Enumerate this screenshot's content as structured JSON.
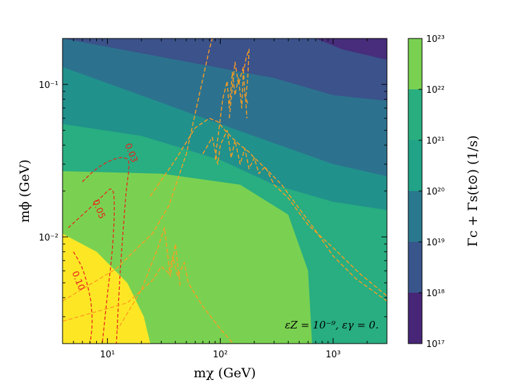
{
  "chart_data": {
    "type": "heatmap",
    "xscale": "log",
    "yscale": "log",
    "xlim": [
      4.0,
      3000
    ],
    "ylim": [
      0.002,
      0.2
    ],
    "xticks": [
      {
        "value": 10,
        "label": "10¹"
      },
      {
        "value": 100,
        "label": "10²"
      },
      {
        "value": 1000,
        "label": "10³"
      }
    ],
    "yticks": [
      {
        "value": 0.01,
        "label": "10⁻²"
      },
      {
        "value": 0.1,
        "label": "10⁻¹"
      }
    ],
    "xlabel": "mχ (GeV)",
    "ylabel": "mϕ (GeV)",
    "annotation": "εZ = 10⁻⁹, εγ = 0.",
    "colorbar": {
      "label": "Γc + Γs(t⊙) (1/s)",
      "levels": [
        17,
        18,
        19,
        20,
        21,
        22,
        23
      ],
      "tick_labels": [
        "10¹⁷",
        "10¹⁸",
        "10¹⁹",
        "10²⁰",
        "10²¹",
        "10²²",
        "10²³"
      ],
      "colors": [
        "#482677",
        "#39568c",
        "#2a788e",
        "#20a386",
        "#29af7f",
        "#7ad151",
        "#dde318"
      ]
    },
    "filled_regions": [
      {
        "level": "1e17-1e18",
        "color": "#472d7b",
        "boundary": [
          [
            700,
            0.2
          ],
          [
            1200,
            0.17
          ],
          [
            3000,
            0.145
          ]
        ]
      },
      {
        "level": "1e18-1e19",
        "color": "#3b528b",
        "boundary": [
          [
            4.0,
            0.2
          ],
          [
            300,
            0.11
          ],
          [
            1000,
            0.085
          ],
          [
            3000,
            0.078
          ]
        ]
      },
      {
        "level": "1e19-1e20",
        "color": "#2c728e",
        "boundary": [
          [
            4.0,
            0.13
          ],
          [
            100,
            0.055
          ],
          [
            1000,
            0.03
          ],
          [
            3000,
            0.025
          ]
        ]
      },
      {
        "level": "1e20-1e21",
        "color": "#21918c",
        "boundary": [
          [
            4.0,
            0.055
          ],
          [
            20,
            0.046
          ],
          [
            100,
            0.032
          ],
          [
            300,
            0.022
          ],
          [
            1000,
            0.017
          ],
          [
            3000,
            0.015
          ]
        ]
      },
      {
        "level": "1e21-1e22",
        "color": "#28ae80",
        "boundary": [
          [
            4.0,
            0.027
          ],
          [
            30,
            0.026
          ],
          [
            150,
            0.022
          ],
          [
            400,
            0.014
          ],
          [
            600,
            0.006
          ],
          [
            650,
            0.002
          ]
        ]
      },
      {
        "level": "1e22-1e23",
        "color": "#7ad151",
        "boundary": [
          [
            4.0,
            0.0105
          ],
          [
            8,
            0.008
          ],
          [
            15,
            0.005
          ],
          [
            21,
            0.003
          ],
          [
            24,
            0.002
          ]
        ]
      },
      {
        "level": ">1e23",
        "color": "#dde318",
        "boundary": []
      }
    ],
    "red_contours": [
      {
        "label": "0.03",
        "points": [
          [
            6.0,
            0.023
          ],
          [
            8.0,
            0.028
          ],
          [
            11,
            0.032
          ],
          [
            14,
            0.033
          ],
          [
            15.5,
            0.03
          ],
          [
            14.5,
            0.018
          ],
          [
            13,
            0.006
          ],
          [
            12,
            0.002
          ]
        ]
      },
      {
        "label": "0.05",
        "points": [
          [
            4.5,
            0.0115
          ],
          [
            7.0,
            0.0155
          ],
          [
            9.0,
            0.0185
          ],
          [
            11,
            0.0205
          ],
          [
            11.5,
            0.015
          ],
          [
            11,
            0.008
          ],
          [
            10,
            0.0042
          ],
          [
            9.0,
            0.002
          ]
        ]
      },
      {
        "label": "0.10",
        "points": [
          [
            5.0,
            0.008
          ],
          [
            6.0,
            0.0062
          ],
          [
            6.8,
            0.0045
          ],
          [
            7.2,
            0.0035
          ],
          [
            7.3,
            0.0026
          ],
          [
            7.0,
            0.002
          ]
        ]
      }
    ],
    "orange_curves": [
      {
        "points": [
          [
            4.0,
            0.0038
          ],
          [
            12,
            0.0062
          ],
          [
            20,
            0.009
          ],
          [
            25,
            0.0105
          ],
          [
            35,
            0.016
          ],
          [
            50,
            0.035
          ],
          [
            65,
            0.085
          ],
          [
            80,
            0.17
          ],
          [
            85,
            0.2
          ]
        ]
      },
      {
        "points": [
          [
            4.0,
            0.0028
          ],
          [
            15,
            0.0037
          ],
          [
            25,
            0.0052
          ],
          [
            30,
            0.0064
          ],
          [
            35,
            0.0058
          ],
          [
            38,
            0.0075
          ],
          [
            42,
            0.0055
          ],
          [
            48,
            0.0068
          ],
          [
            52,
            0.005
          ],
          [
            60,
            0.0042
          ],
          [
            70,
            0.0035
          ],
          [
            100,
            0.0025
          ],
          [
            130,
            0.002
          ]
        ]
      },
      {
        "points": [
          [
            12,
            0.0024
          ],
          [
            20,
            0.0045
          ],
          [
            28,
            0.0085
          ],
          [
            32,
            0.0115
          ],
          [
            36,
            0.0055
          ],
          [
            40,
            0.009
          ],
          [
            44,
            0.0048
          ]
        ]
      },
      {
        "points": [
          [
            24,
            0.0185
          ],
          [
            40,
            0.032
          ],
          [
            60,
            0.052
          ],
          [
            80,
            0.06
          ],
          [
            95,
            0.057
          ],
          [
            110,
            0.05
          ],
          [
            130,
            0.044
          ],
          [
            150,
            0.04
          ],
          [
            180,
            0.036
          ],
          [
            200,
            0.033
          ],
          [
            230,
            0.03
          ],
          [
            280,
            0.026
          ],
          [
            350,
            0.022
          ],
          [
            480,
            0.016
          ],
          [
            700,
            0.011
          ],
          [
            1000,
            0.0075
          ],
          [
            1600,
            0.0053
          ],
          [
            3000,
            0.0038
          ]
        ]
      },
      {
        "points": [
          [
            70,
            0.035
          ],
          [
            85,
            0.045
          ],
          [
            95,
            0.03
          ],
          [
            100,
            0.04
          ],
          [
            115,
            0.05
          ],
          [
            125,
            0.033
          ],
          [
            135,
            0.043
          ],
          [
            150,
            0.03
          ],
          [
            165,
            0.038
          ],
          [
            180,
            0.028
          ],
          [
            200,
            0.033
          ],
          [
            220,
            0.026
          ],
          [
            250,
            0.029
          ],
          [
            300,
            0.022
          ],
          [
            400,
            0.018
          ],
          [
            600,
            0.012
          ],
          [
            1000,
            0.0085
          ],
          [
            1700,
            0.0058
          ],
          [
            3000,
            0.0041
          ]
        ]
      },
      {
        "points": [
          [
            90,
            0.032
          ],
          [
            105,
            0.08
          ],
          [
            115,
            0.105
          ],
          [
            120,
            0.07
          ],
          [
            128,
            0.12
          ],
          [
            135,
            0.085
          ],
          [
            145,
            0.11
          ],
          [
            155,
            0.07
          ],
          [
            160,
            0.12
          ],
          [
            170,
            0.15
          ],
          [
            180,
            0.17
          ],
          [
            175,
            0.11
          ],
          [
            168,
            0.08
          ],
          [
            172,
            0.06
          ]
        ]
      },
      {
        "points": [
          [
            120,
            0.06
          ],
          [
            135,
            0.14
          ],
          [
            145,
            0.1
          ],
          [
            160,
            0.13
          ],
          [
            165,
            0.085
          ],
          [
            175,
            0.075
          ]
        ]
      }
    ]
  }
}
